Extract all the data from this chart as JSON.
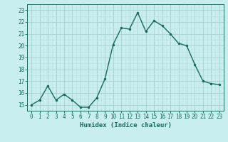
{
  "x": [
    0,
    1,
    2,
    3,
    4,
    5,
    6,
    7,
    8,
    9,
    10,
    11,
    12,
    13,
    14,
    15,
    16,
    17,
    18,
    19,
    20,
    21,
    22,
    23
  ],
  "y": [
    15.0,
    15.4,
    16.6,
    15.4,
    15.9,
    15.4,
    14.8,
    14.8,
    15.6,
    17.2,
    20.1,
    21.5,
    21.4,
    22.8,
    21.2,
    22.1,
    21.7,
    21.0,
    20.2,
    20.0,
    18.4,
    17.0,
    16.8,
    16.7
  ],
  "line_color": "#1a6b5a",
  "marker_color": "#1a6b5a",
  "bg_color": "#c8eef0",
  "grid_color_minor": "#b8dfe1",
  "grid_color_major": "#a8cfd1",
  "xlabel": "Humidex (Indice chaleur)",
  "tick_color": "#1a6b5a",
  "ylim": [
    14.5,
    23.5
  ],
  "xlim": [
    -0.5,
    23.5
  ],
  "yticks": [
    15,
    16,
    17,
    18,
    19,
    20,
    21,
    22,
    23
  ],
  "xticks": [
    0,
    1,
    2,
    3,
    4,
    5,
    6,
    7,
    8,
    9,
    10,
    11,
    12,
    13,
    14,
    15,
    16,
    17,
    18,
    19,
    20,
    21,
    22,
    23
  ]
}
